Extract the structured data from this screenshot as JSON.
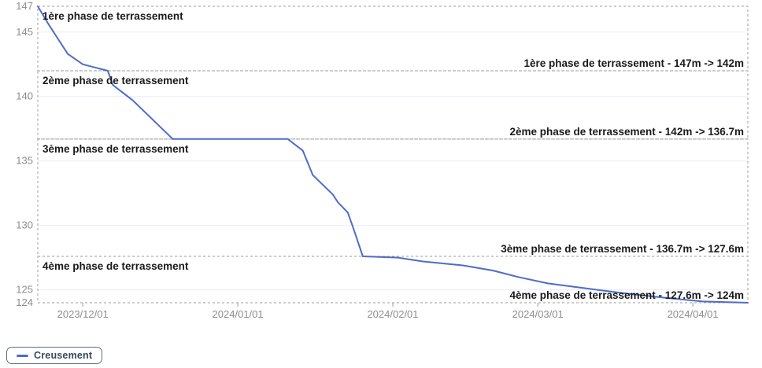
{
  "colors": {
    "line": "#4e6cc8",
    "band_border": "#9b9b9b",
    "grid": "#e7eef6",
    "band_label_text": "#1a1a1a",
    "axis_text": "#8d8d8d",
    "legend_border": "#5f6b85",
    "legend_text": "#39475f",
    "background": "#ffffff"
  },
  "chart_data": {
    "type": "line",
    "title": "",
    "xlabel": "",
    "ylabel": "",
    "x_range": [
      "2023-11-22",
      "2024-04-12"
    ],
    "y_range": [
      124,
      147
    ],
    "grid": "horizontal-light",
    "legend_position": "bottom-left",
    "x_ticks": [
      {
        "date": "2023-12-01",
        "label": "2023/12/01"
      },
      {
        "date": "2024-01-01",
        "label": "2024/01/01"
      },
      {
        "date": "2024-02-01",
        "label": "2024/02/01"
      },
      {
        "date": "2024-03-01",
        "label": "2024/03/01"
      },
      {
        "date": "2024-04-01",
        "label": "2024/04/01"
      }
    ],
    "y_ticks": [
      {
        "value": 147,
        "label": "147",
        "grid": false
      },
      {
        "value": 145,
        "label": "145",
        "grid": true
      },
      {
        "value": 140,
        "label": "140",
        "grid": true
      },
      {
        "value": 135,
        "label": "135",
        "grid": true
      },
      {
        "value": 130,
        "label": "130",
        "grid": true
      },
      {
        "value": 125,
        "label": "125",
        "grid": true
      },
      {
        "value": 124,
        "label": "124",
        "grid": false
      }
    ],
    "bands": [
      {
        "from": 147,
        "to": 142,
        "label": "1ère phase de terrassement",
        "range_label": "1ère phase de terrassement - 147m -> 142m"
      },
      {
        "from": 142,
        "to": 136.7,
        "label": "2ème phase de terrassement",
        "range_label": "2ème phase de terrassement - 142m -> 136.7m"
      },
      {
        "from": 136.7,
        "to": 127.6,
        "label": "3ème phase de terrassement",
        "range_label": "3ème phase de terrassement - 136.7m -> 127.6m"
      },
      {
        "from": 127.6,
        "to": 124,
        "label": "4ème phase de terrassement",
        "range_label": "4ème phase de terrassement - 127.6m -> 124m"
      }
    ],
    "series": [
      {
        "name": "Creusement",
        "color": "#4e6cc8",
        "points": [
          [
            "2023-11-22",
            147.0
          ],
          [
            "2023-11-24",
            145.7
          ],
          [
            "2023-11-26",
            144.5
          ],
          [
            "2023-11-28",
            143.3
          ],
          [
            "2023-12-01",
            142.5
          ],
          [
            "2023-12-04",
            142.2
          ],
          [
            "2023-12-06",
            142.0
          ],
          [
            "2023-12-07",
            140.9
          ],
          [
            "2023-12-08",
            140.6
          ],
          [
            "2023-12-10",
            140.0
          ],
          [
            "2023-12-11",
            139.7
          ],
          [
            "2023-12-19",
            136.7
          ],
          [
            "2024-01-11",
            136.7
          ],
          [
            "2024-01-14",
            135.8
          ],
          [
            "2024-01-16",
            133.9
          ],
          [
            "2024-01-20",
            132.4
          ],
          [
            "2024-01-21",
            131.8
          ],
          [
            "2024-01-23",
            131.0
          ],
          [
            "2024-01-24",
            129.9
          ],
          [
            "2024-01-26",
            127.6
          ],
          [
            "2024-02-02",
            127.5
          ],
          [
            "2024-02-07",
            127.2
          ],
          [
            "2024-02-15",
            126.9
          ],
          [
            "2024-02-21",
            126.5
          ],
          [
            "2024-02-26",
            126.0
          ],
          [
            "2024-03-03",
            125.5
          ],
          [
            "2024-03-11",
            125.1
          ],
          [
            "2024-03-19",
            124.7
          ],
          [
            "2024-03-26",
            124.4
          ],
          [
            "2024-04-03",
            124.1
          ],
          [
            "2024-04-12",
            124.0
          ]
        ]
      }
    ],
    "legend": [
      {
        "label": "Creusement",
        "color": "#4e6cc8"
      }
    ]
  }
}
